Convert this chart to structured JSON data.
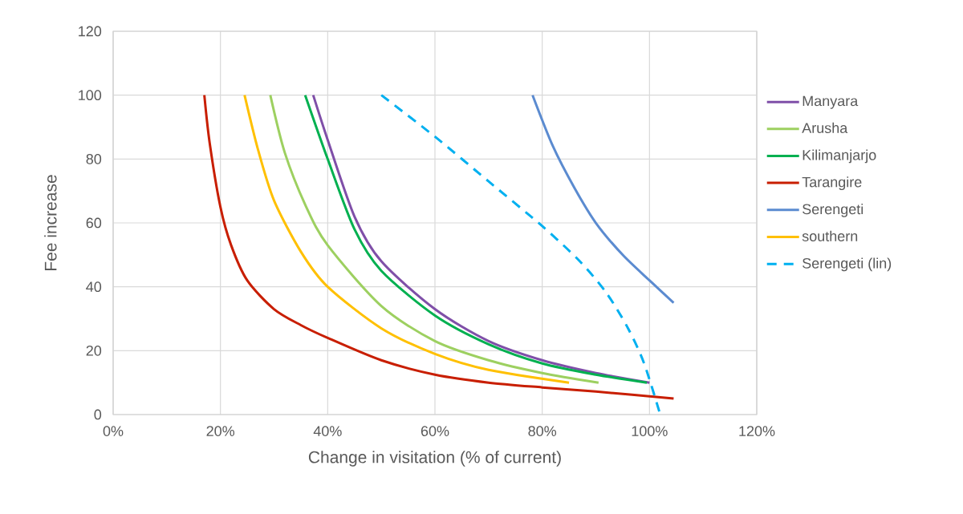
{
  "chart_data": {
    "type": "line",
    "xlabel": "Change in visitation (% of current)",
    "ylabel": "Fee increase",
    "xlim": [
      0,
      120
    ],
    "ylim": [
      0,
      120
    ],
    "xticks": [
      {
        "value": 0,
        "label": "0%"
      },
      {
        "value": 20,
        "label": "20%"
      },
      {
        "value": 40,
        "label": "40%"
      },
      {
        "value": 60,
        "label": "60%"
      },
      {
        "value": 80,
        "label": "80%"
      },
      {
        "value": 100,
        "label": "100%"
      },
      {
        "value": 120,
        "label": "120%"
      }
    ],
    "yticks": [
      0,
      20,
      40,
      60,
      80,
      100,
      120
    ],
    "grid": true,
    "legend": "right",
    "marker": "none",
    "series": [
      {
        "name": "Manyara",
        "color": "#7f4fa8",
        "x": [
          37.3,
          40,
          45,
          50,
          60,
          70,
          80,
          90,
          100
        ],
        "values": [
          100,
          86,
          62,
          48,
          33,
          23,
          17,
          13,
          10
        ]
      },
      {
        "name": "Arusha",
        "color": "#9dd060",
        "x": [
          29.3,
          32,
          36,
          40,
          50,
          60,
          70,
          80,
          90.5
        ],
        "values": [
          100,
          82,
          65,
          53,
          34,
          23,
          17,
          13,
          10
        ]
      },
      {
        "name": "Kilimanjarjo",
        "color": "#00b050",
        "x": [
          35.8,
          40,
          45,
          50,
          60,
          70,
          80,
          90,
          99.5
        ],
        "values": [
          100,
          80,
          58,
          45,
          31,
          22,
          16,
          12.5,
          10
        ]
      },
      {
        "name": "Tarangire",
        "color": "#c81e00",
        "x": [
          17,
          18,
          20,
          22,
          25,
          30,
          35,
          40,
          50,
          60,
          70,
          80,
          90,
          104.5
        ],
        "values": [
          100,
          85,
          65,
          53,
          42,
          33,
          28,
          24,
          17,
          12.5,
          10,
          8.5,
          7.2,
          5
        ]
      },
      {
        "name": "Serengeti",
        "color": "#5b8bd0",
        "x": [
          78.2,
          82,
          86,
          90,
          95,
          100,
          104.5
        ],
        "values": [
          100,
          84,
          71,
          60,
          50,
          42,
          35
        ]
      },
      {
        "name": "southern",
        "color": "#ffc000",
        "x": [
          24.5,
          27,
          30,
          35,
          40,
          50,
          60,
          70,
          85
        ],
        "values": [
          100,
          83,
          67,
          51,
          40,
          27,
          19,
          14,
          10
        ]
      },
      {
        "name": "Serengeti (lin)",
        "color": "#00b0f0",
        "line_style": "dashed",
        "x": [
          50,
          60,
          70,
          80,
          87,
          92,
          96,
          99,
          102
        ],
        "values": [
          100,
          87,
          73,
          59,
          48,
          38,
          27,
          16,
          0
        ]
      }
    ]
  }
}
